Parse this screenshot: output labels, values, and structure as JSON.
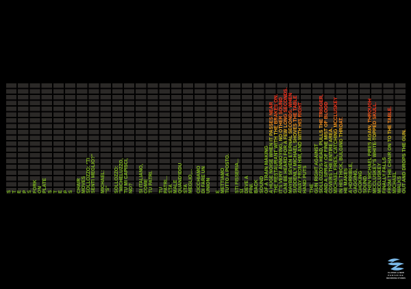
{
  "script_columns": [
    [
      "S"
    ],
    [
      "T"
    ],
    [
      "E"
    ],
    [
      "P"
    ],
    [
      "S"
    ],
    [
      "FORK",
      "ON",
      "PLATE"
    ],
    [
      "S"
    ],
    [
      "T"
    ],
    [
      "E"
    ],
    [
      "P"
    ],
    [
      "S"
    ],
    [
      "CHAIR",
      "MOVES",
      "SOLLOZZO: \"TI",
      "SENTI MEGLIO?\""
    ],
    [
      "MICHAEL:",
      "\"S\""
    ],
    [
      "SOLLOZZO:",
      "\"MICHELUZZO,",
      "TU MI CAPISCI,",
      "NO?"
    ],
    [
      "SI ITALIANO,",
      "COME",
      "TU PATRI."
    ],
    [
      "TU",
      "PATRI...",
      "STA",
      "MALE",
      "QUAND'IDDU",
      "STA",
      "MEGLIO,..."
    ],
    [
      "CICCHIAMO",
      "DI FARE UN",
      "UNION"
    ],
    [
      "E",
      "METTIAMO",
      "TUTTO A POSTO."
    ],
    [
      "STI FISSERIA...",
      "SI",
      "DEVE A",
      "FINI.",
      "BACK",
      "SOUND",
      "OF A TRAIN MAKING",
      "A HUGE NOISE WHEN IT PASSES NEAR",
      "THE RESTAURANT WITH THE BRAKES ON.",
      "IT'S VERY ANNOYING, NO OTHER SOUND",
      "CAN BE HEARD FOR A FEW LONG SECONDS.",
      "MAYBE SEVEN ETERNAL SECONDS. WHEN",
      "SUDDENLY MICHAEL SHOVES THE TABLE",
      "AWAY FROM HIM, AND WITH HIS RIGHT",
      "HAND PUTS"
    ],
    [
      "THE"
    ],
    [
      "GUN RIGHT AGAINST",
      "SOLLOZZO'S HEAD, PULLS THE TRIGGER,",
      "AND A SPRAY OF FINE MIST OF BLOOD",
      "COVERS THE ENTIRE AREA.",
      "MICHAEL FIRES, CATCHING MCCLUSKEY",
      "IN HIS THICK, BULGING THROAT.",
      "HE MAKES",
      "A HORRIBLE,",
      "GAGGING,",
      "CHOKING",
      "SOUND.",
      "THEN MICHAEL FIRES AGAIN, THROUGH",
      "MCCLUSKEY'S WHITE-TOPPED SKULL.",
      "MCCLUSKEY",
      "FINALLY FALLS",
      "FROM THE CHAIR ON TO THE TABLE.",
      "MICHAEL",
      "WALKS",
      "OUT AND DROPS THE GUN."
    ]
  ],
  "colors": {
    "low": "#7dbd1e",
    "mid": "#f5a51c",
    "high": "#ff2418",
    "cell": "#2b2927"
  },
  "logo": {
    "line1": "CLASSIC & NEW",
    "line2": "PARADISE",
    "line3": "RECORDING STUDIOS"
  }
}
